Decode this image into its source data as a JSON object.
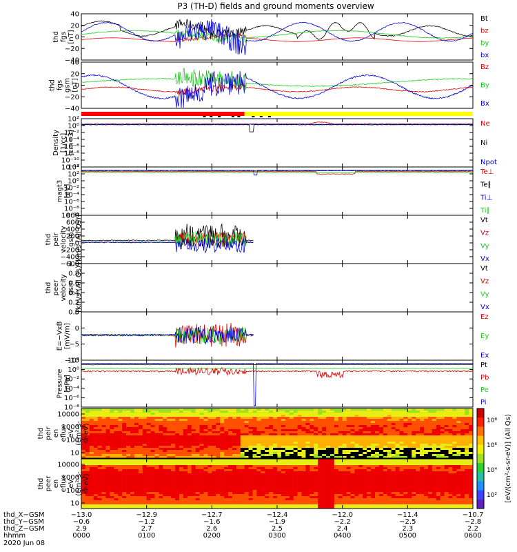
{
  "title": "P3 (TH-D) fields and ground moments overview",
  "date": "2020 Jun 08",
  "colors": {
    "black": "#000000",
    "red": "#e00000",
    "green": "#1ccd1c",
    "blue": "#0000d8",
    "yellow": "#ffff00",
    "mode_red": "#ff0000"
  },
  "chart_data": [
    {
      "type": "line",
      "id": "fgs_bt",
      "ylabel": [
        "thd",
        "fgs",
        "[nT]"
      ],
      "ylim": [
        -40,
        40
      ],
      "yticks": [
        "40",
        "20",
        "0",
        "−20",
        "−40"
      ],
      "legend": [
        {
          "name": "Bt",
          "color": "black"
        },
        {
          "name": "bz",
          "color": "red"
        },
        {
          "name": "by",
          "color": "green"
        },
        {
          "name": "bx",
          "color": "blue"
        }
      ]
    },
    {
      "type": "line",
      "id": "fgs_gsm",
      "ylabel": [
        "thd",
        "fgs",
        "gsm",
        "[nT]"
      ],
      "ylim": [
        -50,
        40
      ],
      "yticks": [
        "40",
        "20",
        "0",
        "−20",
        "−40"
      ],
      "legend": [
        {
          "name": "Bz",
          "color": "red"
        },
        {
          "name": "By",
          "color": "green"
        },
        {
          "name": "Bx",
          "color": "blue"
        }
      ]
    },
    {
      "type": "bar",
      "id": "mode_bar",
      "note": "mode indicator",
      "segments": [
        {
          "from": 0,
          "to": 2.5,
          "color": "mode_red"
        },
        {
          "from": 2.5,
          "to": 6,
          "color": "yellow"
        }
      ]
    },
    {
      "type": "line",
      "id": "density",
      "ylabel": [
        "Density",
        "[1/cc]",
        "[cm−3]"
      ],
      "scale": "log",
      "yticks": [
        "10²",
        "10⁰",
        "10⁻²",
        "10⁻⁴",
        "10⁻⁶",
        "10⁻⁸",
        "10⁻¹⁰",
        "10⁻¹²"
      ],
      "legend": [
        {
          "name": "Ne",
          "color": "red"
        },
        {
          "name": "Ni",
          "color": "black"
        },
        {
          "name": "Npot",
          "color": "blue"
        }
      ]
    },
    {
      "type": "line",
      "id": "temperature",
      "ylabel": [
        "magt3",
        "[eV]"
      ],
      "scale": "log",
      "yticks": [
        "10⁴",
        "10²",
        "10⁰",
        "10⁻²",
        "10⁻⁴",
        "10⁻⁶",
        "10⁻⁸",
        "10⁻¹⁰"
      ],
      "legend": [
        {
          "name": "Te⊥",
          "color": "red"
        },
        {
          "name": "Te∥",
          "color": "black"
        },
        {
          "name": "Ti⊥",
          "color": "blue"
        },
        {
          "name": "Ti∥",
          "color": "green"
        }
      ]
    },
    {
      "type": "line",
      "id": "peir_velocity",
      "ylabel": [
        "thd",
        "peir",
        "velocity",
        "gsm",
        "[km/s (All Qs)]"
      ],
      "ylim": [
        -600,
        800
      ],
      "yticks": [
        "800",
        "600",
        "400",
        "200",
        "0",
        "−200",
        "−400",
        "−600"
      ],
      "legend": [
        {
          "name": "Vt",
          "color": "black"
        },
        {
          "name": "Vz",
          "color": "red"
        },
        {
          "name": "Vy",
          "color": "green"
        },
        {
          "name": "Vx",
          "color": "blue"
        }
      ]
    },
    {
      "type": "line",
      "id": "peer_velocity",
      "ylabel": [
        "thd",
        "peer",
        "velocity",
        "gsm",
        "[km/s (All Qs)]"
      ],
      "ylim": [
        0,
        1
      ],
      "yticks": [
        "1.0",
        "0.8",
        "0.6",
        "0.4",
        "0.2",
        "0.0"
      ],
      "legend": [
        {
          "name": "Vt",
          "color": "black"
        },
        {
          "name": "Vz",
          "color": "red"
        },
        {
          "name": "Vy",
          "color": "green"
        },
        {
          "name": "Vx",
          "color": "blue"
        }
      ]
    },
    {
      "type": "line",
      "id": "e_field",
      "ylabel": [
        "E=−VxB",
        "[mV/m]"
      ],
      "ylim": [
        -10,
        10
      ],
      "yticks": [
        "5",
        "0",
        "−5",
        "−10"
      ],
      "legend": [
        {
          "name": "Ez",
          "color": "red"
        },
        {
          "name": "Ey",
          "color": "green"
        },
        {
          "name": "Ex",
          "color": "blue"
        }
      ]
    },
    {
      "type": "line",
      "id": "pressure",
      "ylabel": [
        "Pressure",
        "[nPa]"
      ],
      "scale": "log",
      "yticks": [
        "10²",
        "10⁰",
        "10⁻²",
        "10⁻⁴",
        "10⁻⁶",
        "10⁻⁸"
      ],
      "legend": [
        {
          "name": "Pt",
          "color": "black"
        },
        {
          "name": "Pb",
          "color": "red"
        },
        {
          "name": "Pe",
          "color": "green"
        },
        {
          "name": "Pi",
          "color": "blue"
        }
      ]
    },
    {
      "type": "heatmap",
      "id": "peir_eflux",
      "ylabel": [
        "thd",
        "peir",
        "en",
        "eflux",
        "eV",
        "(cm²-s-",
        "sr-eV)"
      ],
      "scale": "log",
      "yticks": [
        "10000",
        "1000",
        "100",
        "10"
      ]
    },
    {
      "type": "heatmap",
      "id": "peer_eflux",
      "ylabel": [
        "thd",
        "peer",
        "en",
        "eflux",
        "eV",
        "(cm²-s-",
        "sr-eV)"
      ],
      "scale": "log",
      "yticks": [
        "10000",
        "1000",
        "100",
        "10"
      ]
    }
  ],
  "colorbar": {
    "label": "[eV/(cm²-s-sr-eV)] (All Qs)",
    "ticks": [
      "10⁸",
      "10⁶",
      "10⁴",
      "10²"
    ]
  },
  "xaxis": {
    "rows": [
      {
        "label": "thd_X−GSM",
        "values": [
          "−13.0",
          "−12.9",
          "−12.7",
          "−12.4",
          "−12.0",
          "−11.4",
          "−10.7"
        ]
      },
      {
        "label": "thd_Y−GSM",
        "values": [
          "−0.6",
          "−1.2",
          "−1.6",
          "−1.9",
          "−2.2",
          "−2.5",
          "−2.8"
        ]
      },
      {
        "label": "thd_Z−GSM",
        "values": [
          "2.9",
          "2.7",
          "2.6",
          "2.5",
          "2.4",
          "2.3",
          "2.2"
        ]
      },
      {
        "label": "hhmm",
        "values": [
          "0000",
          "0100",
          "0200",
          "0300",
          "0400",
          "0500",
          "0600"
        ]
      }
    ]
  }
}
